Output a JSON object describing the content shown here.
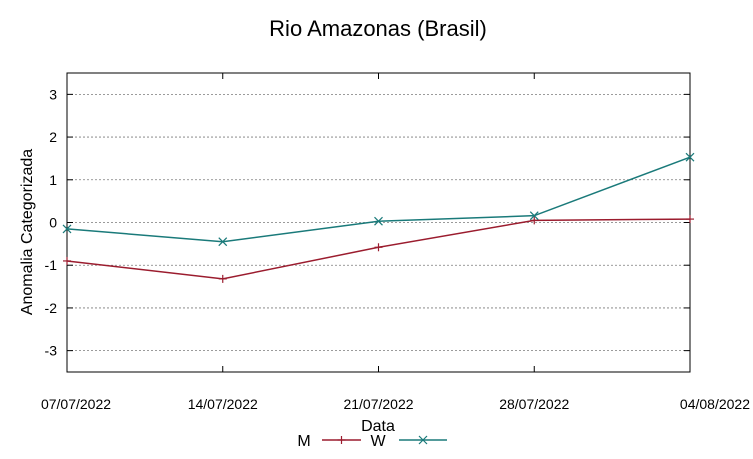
{
  "chart_data": {
    "type": "line",
    "title": "Rio Amazonas (Brasil)",
    "xlabel": "Data",
    "ylabel": "Anomalia Categorizada",
    "categories": [
      "07/07/2022",
      "14/07/2022",
      "21/07/2022",
      "28/07/2022",
      "04/08/2022"
    ],
    "yticks": [
      "3",
      "2",
      "1",
      "0",
      "-1",
      "-2",
      "-3"
    ],
    "ylim": [
      -3.5,
      3.5
    ],
    "grid": true,
    "legend_position": "bottom-center",
    "series": [
      {
        "name": "M",
        "color": "#9b1c2e",
        "marker": "plus",
        "values": [
          -0.9,
          -1.32,
          -0.58,
          0.05,
          0.08
        ]
      },
      {
        "name": "W",
        "color": "#1a7a7a",
        "marker": "x",
        "values": [
          -0.15,
          -0.45,
          0.03,
          0.16,
          1.53
        ]
      }
    ]
  }
}
